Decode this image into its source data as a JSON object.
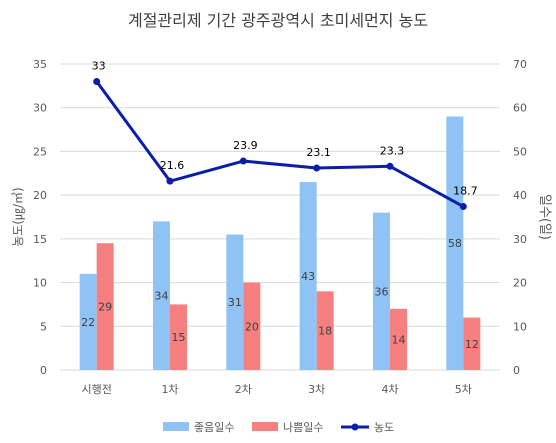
{
  "chart_data": {
    "type": "bar",
    "title": "계절관리제 기간 광주광역시 초미세먼지 농도",
    "categories": [
      "시행전",
      "1차",
      "2차",
      "3차",
      "4차",
      "5차"
    ],
    "ylabel_left": "농도(㎍/㎥)",
    "ylabel_right": "일수(일)",
    "ylim_left": [
      0,
      35
    ],
    "yticks_left": [
      0,
      5,
      10,
      15,
      20,
      25,
      30,
      35
    ],
    "ylim_right": [
      0,
      70
    ],
    "yticks_right": [
      0,
      10,
      20,
      30,
      40,
      50,
      60,
      70
    ],
    "grid": true,
    "legend_position": "bottom",
    "series": [
      {
        "name": "좋음일수",
        "type": "bar",
        "axis": "right",
        "color": "#90C3F5",
        "values": [
          22,
          34,
          31,
          43,
          36,
          58
        ]
      },
      {
        "name": "나쁨일수",
        "type": "bar",
        "axis": "right",
        "color": "#F5807F",
        "values": [
          29,
          15,
          20,
          18,
          14,
          12
        ]
      },
      {
        "name": "농도",
        "type": "line",
        "axis": "left",
        "color": "#0A1EA8",
        "values": [
          33,
          21.6,
          23.9,
          23.1,
          23.3,
          18.7
        ]
      }
    ]
  }
}
